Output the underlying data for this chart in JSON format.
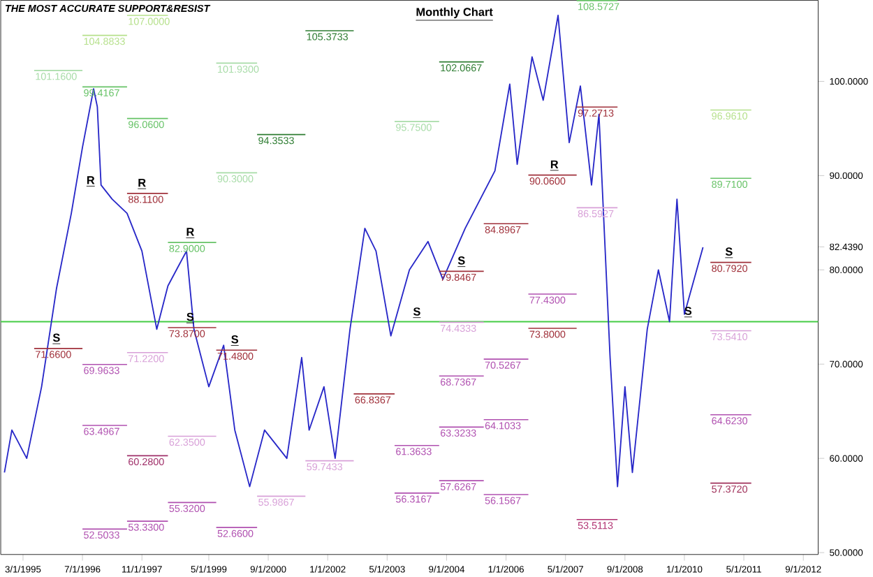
{
  "chart_data": {
    "type": "line",
    "title": "THE MOST ACCURATE SUPPORT&RESIST",
    "subtitle": "Monthly Chart",
    "xlim": [
      "1994-09",
      "2013-01"
    ],
    "ylim": [
      49.8,
      108.6
    ],
    "xticks": [
      {
        "value": "1995-03",
        "label": "3/1/1995"
      },
      {
        "value": "1996-07",
        "label": "7/1/1996"
      },
      {
        "value": "1997-11",
        "label": "11/1/1997"
      },
      {
        "value": "1999-05",
        "label": "5/1/1999"
      },
      {
        "value": "2000-09",
        "label": "9/1/2000"
      },
      {
        "value": "2002-01",
        "label": "1/1/2002"
      },
      {
        "value": "2003-05",
        "label": "5/1/2003"
      },
      {
        "value": "2004-09",
        "label": "9/1/2004"
      },
      {
        "value": "2006-01",
        "label": "1/1/2006"
      },
      {
        "value": "2007-05",
        "label": "5/1/2007"
      },
      {
        "value": "2008-09",
        "label": "9/1/2008"
      },
      {
        "value": "2010-01",
        "label": "1/1/2010"
      },
      {
        "value": "2011-05",
        "label": "5/1/2011"
      },
      {
        "value": "2012-09",
        "label": "9/1/2012"
      }
    ],
    "yticks": [
      {
        "value": 50,
        "label": "50.0000"
      },
      {
        "value": 60,
        "label": "60.0000"
      },
      {
        "value": 70,
        "label": "70.0000"
      },
      {
        "value": 80,
        "label": "80.0000"
      },
      {
        "value": 82.439,
        "label": "82.4390"
      },
      {
        "value": 90,
        "label": "90.0000"
      },
      {
        "value": 100,
        "label": "100.0000"
      }
    ],
    "ref_lines": [
      {
        "axis": "y",
        "value": 74.5,
        "color": "#44cc44"
      }
    ],
    "annotations": [
      "R",
      {
        "text": "R",
        "x": "1997-11",
        "y": 88.11
      },
      {
        "text": "R",
        "x": "1998-12",
        "y": 82.9
      },
      {
        "text": "R",
        "x": "2007-02",
        "y": 90.06
      },
      {
        "text": "S",
        "x": "1995-12",
        "y": 71.66
      },
      {
        "text": "S",
        "x": "1998-12",
        "y": 73.87
      },
      {
        "text": "S",
        "x": "1999-12",
        "y": 71.48
      },
      {
        "text": "S",
        "x": "2004-01",
        "y": 74.4333
      },
      {
        "text": "S",
        "x": "2005-01",
        "y": 79.8467
      },
      {
        "text": "S",
        "x": "2011-01",
        "y": 80.792
      },
      {
        "text": "S",
        "x": "2010-02",
        "y": 74.5
      }
    ],
    "series": [
      {
        "color": "#2828c8",
        "x": [
          "1994-10",
          "1994-12",
          "1995-04",
          "1995-08",
          "1995-12",
          "1996-04",
          "1996-07",
          "1996-10",
          "1996-11",
          "1996-12",
          "1997-03",
          "1997-07",
          "1997-11",
          "1998-03",
          "1998-06",
          "1998-11",
          "1999-01",
          "1999-05",
          "1999-09",
          "1999-12",
          "2000-04",
          "2000-08",
          "2001-02",
          "2001-06",
          "2001-08",
          "2001-12",
          "2002-03",
          "2002-07",
          "2002-11",
          "2003-02",
          "2003-06",
          "2003-11",
          "2004-04",
          "2004-08",
          "2005-02",
          "2005-10",
          "2006-02",
          "2006-04",
          "2006-08",
          "2006-11",
          "2007-03",
          "2007-06",
          "2007-09",
          "2007-12",
          "2008-02",
          "2008-05",
          "2008-07",
          "2008-09",
          "2008-11",
          "2009-03",
          "2009-06",
          "2009-09",
          "2009-11",
          "2010-01",
          "2010-06"
        ],
        "values": [
          58.5,
          63,
          60,
          67.6,
          78,
          86,
          93,
          99.2,
          97.3,
          89,
          87.5,
          86,
          82,
          73.7,
          78.3,
          82,
          73.7,
          67.6,
          72,
          63,
          57,
          63,
          60,
          70.7,
          63,
          67.6,
          60,
          73.7,
          84.4,
          82,
          73,
          80,
          83,
          79,
          84.4,
          90.5,
          99.7,
          91.2,
          102.6,
          98,
          107,
          93.5,
          99.5,
          89,
          96.5,
          70.7,
          57,
          67.6,
          58.5,
          73.7,
          80,
          74.5,
          87.5,
          75.3,
          82.4
        ]
      },
      {
        "name": "107.0000",
        "color": "#b5e08a",
        "x": [
          "1997-07",
          "1998-06"
        ],
        "values": [
          107,
          107
        ]
      },
      {
        "name": "104.8833",
        "color": "#b5e08a",
        "x": [
          "1996-07",
          "1997-07"
        ],
        "values": [
          104.8833,
          104.8833
        ]
      },
      {
        "name": "101.1600",
        "color": "#a8dca8",
        "x": [
          "1995-06",
          "1996-07"
        ],
        "values": [
          101.16,
          101.16
        ]
      },
      {
        "name": "101.9300",
        "color": "#a8dca8",
        "x": [
          "1999-07",
          "2000-06"
        ],
        "values": [
          101.93,
          101.93
        ]
      },
      {
        "name": "99.4167",
        "color": "#66c266",
        "x": [
          "1996-07",
          "1997-07"
        ],
        "values": [
          99.4167,
          99.4167
        ]
      },
      {
        "name": "96.0600",
        "color": "#66c266",
        "x": [
          "1997-07",
          "1998-06"
        ],
        "values": [
          96.06,
          96.06
        ]
      },
      {
        "name": "94.3533",
        "color": "#2e7d32",
        "x": [
          "2000-06",
          "2001-07"
        ],
        "values": [
          94.3533,
          94.3533
        ]
      },
      {
        "name": "90.3000",
        "color": "#a8dca8",
        "x": [
          "1999-07",
          "2000-06"
        ],
        "values": [
          90.3,
          90.3
        ]
      },
      {
        "name": "88.1100",
        "color": "#a0303a",
        "x": [
          "1997-07",
          "1998-06"
        ],
        "values": [
          88.11,
          88.11
        ]
      },
      {
        "name": "82.9000",
        "color": "#66c266",
        "x": [
          "1998-06",
          "1999-07"
        ],
        "values": [
          82.9,
          82.9
        ]
      },
      {
        "name": "105.3733",
        "color": "#2e7d32",
        "x": [
          "2001-07",
          "2002-08"
        ],
        "values": [
          105.3733,
          105.3733
        ]
      },
      {
        "name": "102.0667",
        "color": "#2e7d32",
        "x": [
          "2004-07",
          "2005-07"
        ],
        "values": [
          102.0667,
          102.0667
        ]
      },
      {
        "name": "95.7500",
        "color": "#a8dca8",
        "x": [
          "2003-07",
          "2004-07"
        ],
        "values": [
          95.75,
          95.75
        ]
      },
      {
        "name": "108.5727",
        "color": "#66c266",
        "x": [
          "2007-08",
          "2008-07"
        ],
        "values": [
          108.5727,
          108.5727
        ]
      },
      {
        "name": "96.9610",
        "color": "#b5e08a",
        "x": [
          "2010-08",
          "2011-07"
        ],
        "values": [
          96.961,
          96.961
        ]
      },
      {
        "name": "89.7100",
        "color": "#66c266",
        "x": [
          "2010-08",
          "2011-07"
        ],
        "values": [
          89.71,
          89.71
        ]
      },
      {
        "name": "90.0600",
        "color": "#a0303a",
        "x": [
          "2006-07",
          "2007-08"
        ],
        "values": [
          90.06,
          90.06
        ]
      },
      {
        "name": "97.2713",
        "color": "#a0303a",
        "x": [
          "2007-08",
          "2008-07"
        ],
        "values": [
          97.2713,
          97.2713
        ]
      },
      {
        "name": "84.8967",
        "color": "#a0303a",
        "x": [
          "2005-07",
          "2006-07"
        ],
        "values": [
          84.8967,
          84.8967
        ]
      },
      {
        "name": "80.7920",
        "color": "#a0303a",
        "x": [
          "2010-08",
          "2011-07"
        ],
        "values": [
          80.792,
          80.792
        ]
      },
      {
        "name": "79.8467",
        "color": "#a0303a",
        "x": [
          "2004-07",
          "2005-07"
        ],
        "values": [
          79.8467,
          79.8467
        ]
      },
      {
        "name": "73.8700",
        "color": "#a0303a",
        "x": [
          "1998-06",
          "1999-07"
        ],
        "values": [
          73.87,
          73.87
        ]
      },
      {
        "name": "71.6600",
        "color": "#a0303a",
        "x": [
          "1995-06",
          "1996-07"
        ],
        "values": [
          71.66,
          71.66
        ]
      },
      {
        "name": "71.4800",
        "color": "#a0303a",
        "x": [
          "1999-07",
          "2000-06"
        ],
        "values": [
          71.48,
          71.48
        ]
      },
      {
        "name": "73.8000",
        "color": "#a0303a",
        "x": [
          "2006-07",
          "2007-08"
        ],
        "values": [
          73.8,
          73.8
        ]
      },
      {
        "name": "66.8367",
        "color": "#a0303a",
        "x": [
          "2002-08",
          "2003-07"
        ],
        "values": [
          66.8367,
          66.8367
        ]
      },
      {
        "name": "60.2800",
        "color": "#a0306a",
        "x": [
          "1997-07",
          "1998-06"
        ],
        "values": [
          60.28,
          60.28
        ]
      },
      {
        "name": "53.5113",
        "color": "#b03070",
        "x": [
          "2007-08",
          "2008-07"
        ],
        "values": [
          53.5113,
          53.5113
        ]
      },
      {
        "name": "69.9633",
        "color": "#b050b0",
        "x": [
          "1996-07",
          "1997-07"
        ],
        "values": [
          69.9633,
          69.9633
        ]
      },
      {
        "name": "71.2200",
        "color": "#d8a0d8",
        "x": [
          "1997-07",
          "1998-06"
        ],
        "values": [
          71.22,
          71.22
        ]
      },
      {
        "name": "63.4967",
        "color": "#b050b0",
        "x": [
          "1996-07",
          "1997-07"
        ],
        "values": [
          63.4967,
          63.4967
        ]
      },
      {
        "name": "62.3500",
        "color": "#d8a0d8",
        "x": [
          "1998-06",
          "1999-07"
        ],
        "values": [
          62.35,
          62.35
        ]
      },
      {
        "name": "55.3200",
        "color": "#b050b0",
        "x": [
          "1998-06",
          "1999-07"
        ],
        "values": [
          55.32,
          55.32
        ]
      },
      {
        "name": "53.3300",
        "color": "#b050b0",
        "x": [
          "1997-07",
          "1998-06"
        ],
        "values": [
          53.33,
          53.33
        ]
      },
      {
        "name": "52.5033",
        "color": "#b050b0",
        "x": [
          "1996-07",
          "1997-07"
        ],
        "values": [
          52.5033,
          52.5033
        ]
      },
      {
        "name": "52.6600",
        "color": "#b050b0",
        "x": [
          "1999-07",
          "2000-06"
        ],
        "values": [
          52.66,
          52.66
        ]
      },
      {
        "name": "55.9867",
        "color": "#d8a0d8",
        "x": [
          "2000-06",
          "2001-07"
        ],
        "values": [
          55.9867,
          55.9867
        ]
      },
      {
        "name": "59.7433",
        "color": "#d8a0d8",
        "x": [
          "2001-07",
          "2002-08"
        ],
        "values": [
          59.7433,
          59.7433
        ]
      },
      {
        "name": "61.3633",
        "color": "#b050b0",
        "x": [
          "2003-07",
          "2004-07"
        ],
        "values": [
          61.3633,
          61.3633
        ]
      },
      {
        "name": "56.3167",
        "color": "#b050b0",
        "x": [
          "2003-07",
          "2004-07"
        ],
        "values": [
          56.3167,
          56.3167
        ]
      },
      {
        "name": "57.6267",
        "color": "#b050b0",
        "x": [
          "2004-07",
          "2005-07"
        ],
        "values": [
          57.6267,
          57.6267
        ]
      },
      {
        "name": "56.1567",
        "color": "#b050b0",
        "x": [
          "2005-07",
          "2006-07"
        ],
        "values": [
          56.1567,
          56.1567
        ]
      },
      {
        "name": "63.3233",
        "color": "#b050b0",
        "x": [
          "2004-07",
          "2005-07"
        ],
        "values": [
          63.3233,
          63.3233
        ]
      },
      {
        "name": "64.1033",
        "color": "#b050b0",
        "x": [
          "2005-07",
          "2006-07"
        ],
        "values": [
          64.1033,
          64.1033
        ]
      },
      {
        "name": "68.7367",
        "color": "#b050b0",
        "x": [
          "2004-07",
          "2005-07"
        ],
        "values": [
          68.7367,
          68.7367
        ]
      },
      {
        "name": "70.5267",
        "color": "#b050b0",
        "x": [
          "2005-07",
          "2006-07"
        ],
        "values": [
          70.5267,
          70.5267
        ]
      },
      {
        "name": "74.4333",
        "color": "#d8a0d8",
        "x": [
          "2004-07",
          "2005-07"
        ],
        "values": [
          74.4333,
          74.4333
        ]
      },
      {
        "name": "77.4300",
        "color": "#b050b0",
        "x": [
          "2006-07",
          "2007-08"
        ],
        "values": [
          77.43,
          77.43
        ]
      },
      {
        "name": "86.5927",
        "color": "#d8a0d8",
        "x": [
          "2007-08",
          "2008-07"
        ],
        "values": [
          86.5927,
          86.5927
        ]
      },
      {
        "name": "73.5410",
        "color": "#d8a0d8",
        "x": [
          "2010-08",
          "2011-07"
        ],
        "values": [
          73.541,
          73.541
        ]
      },
      {
        "name": "64.6230",
        "color": "#b050b0",
        "x": [
          "2010-08",
          "2011-07"
        ],
        "values": [
          64.623,
          64.623
        ]
      },
      {
        "name": "57.3720",
        "color": "#a0305a",
        "x": [
          "2010-08",
          "2011-07"
        ],
        "values": [
          57.372,
          57.372
        ]
      }
    ]
  }
}
